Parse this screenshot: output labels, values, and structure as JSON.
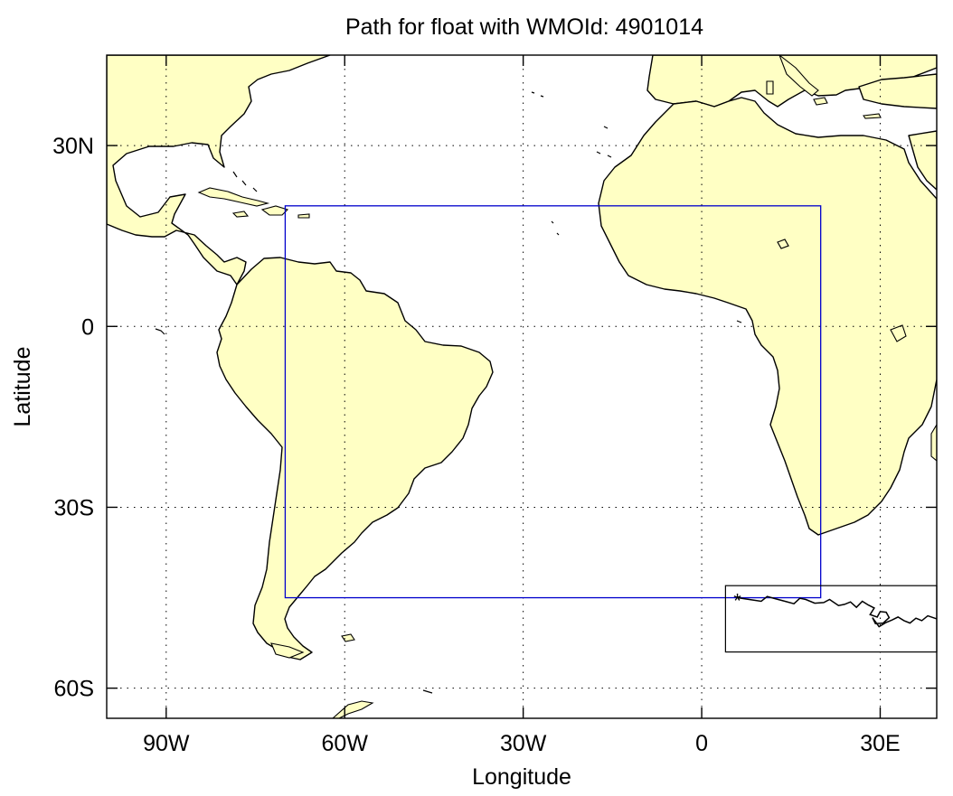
{
  "title": "Path for float with WMOId: 4901014",
  "xlabel": "Longitude",
  "ylabel": "Latitude",
  "x_ticks": [
    {
      "label": "90W",
      "value": -90
    },
    {
      "label": "60W",
      "value": -60
    },
    {
      "label": "30W",
      "value": -30
    },
    {
      "label": "0",
      "value": 0
    },
    {
      "label": "30E",
      "value": 30
    }
  ],
  "y_ticks": [
    {
      "label": "30N",
      "value": 30
    },
    {
      "label": "0",
      "value": 0
    },
    {
      "label": "30S",
      "value": -30
    },
    {
      "label": "60S",
      "value": -60
    }
  ],
  "lon_range": [
    -100,
    39.5
  ],
  "lat_range": [
    -65,
    45
  ],
  "colors": {
    "land": "#ffffc4",
    "region_box": "#0000cc",
    "path": "#000000"
  },
  "region_box": {
    "lon": [
      -70,
      20
    ],
    "lat": [
      -45,
      20
    ]
  },
  "track_box": {
    "lon": [
      4,
      39.5
    ],
    "lat": [
      -54,
      -43
    ]
  },
  "float_path": {
    "marker": "*",
    "start": {
      "lon": 6,
      "lat": -45
    },
    "points": [
      [
        6,
        -45
      ],
      [
        8,
        -45.3
      ],
      [
        10,
        -45.6
      ],
      [
        11,
        -44.8
      ],
      [
        12.5,
        -45.2
      ],
      [
        14,
        -45.6
      ],
      [
        15.5,
        -46
      ],
      [
        16.5,
        -45.1
      ],
      [
        17.5,
        -45.3
      ],
      [
        19,
        -45.9
      ],
      [
        20.5,
        -45.8
      ],
      [
        21.5,
        -45.3
      ],
      [
        23,
        -46.3
      ],
      [
        24,
        -46.1
      ],
      [
        25,
        -45.7
      ],
      [
        26,
        -46.6
      ],
      [
        27,
        -45.6
      ],
      [
        28,
        -46.2
      ],
      [
        29,
        -46.7
      ],
      [
        28.3,
        -47.8
      ],
      [
        29.5,
        -48.2
      ],
      [
        30,
        -47.3
      ],
      [
        31,
        -47.4
      ],
      [
        31.5,
        -48.3
      ],
      [
        30.5,
        -49.2
      ],
      [
        29.2,
        -49.3
      ],
      [
        28.7,
        -48.3
      ],
      [
        29.8,
        -49.8
      ],
      [
        31,
        -49.1
      ],
      [
        32,
        -48.7
      ],
      [
        33,
        -48.2
      ],
      [
        34,
        -48.8
      ],
      [
        35,
        -49.2
      ],
      [
        36,
        -48.4
      ],
      [
        37,
        -48.8
      ],
      [
        38,
        -48
      ],
      [
        39.5,
        -48.5
      ]
    ]
  }
}
